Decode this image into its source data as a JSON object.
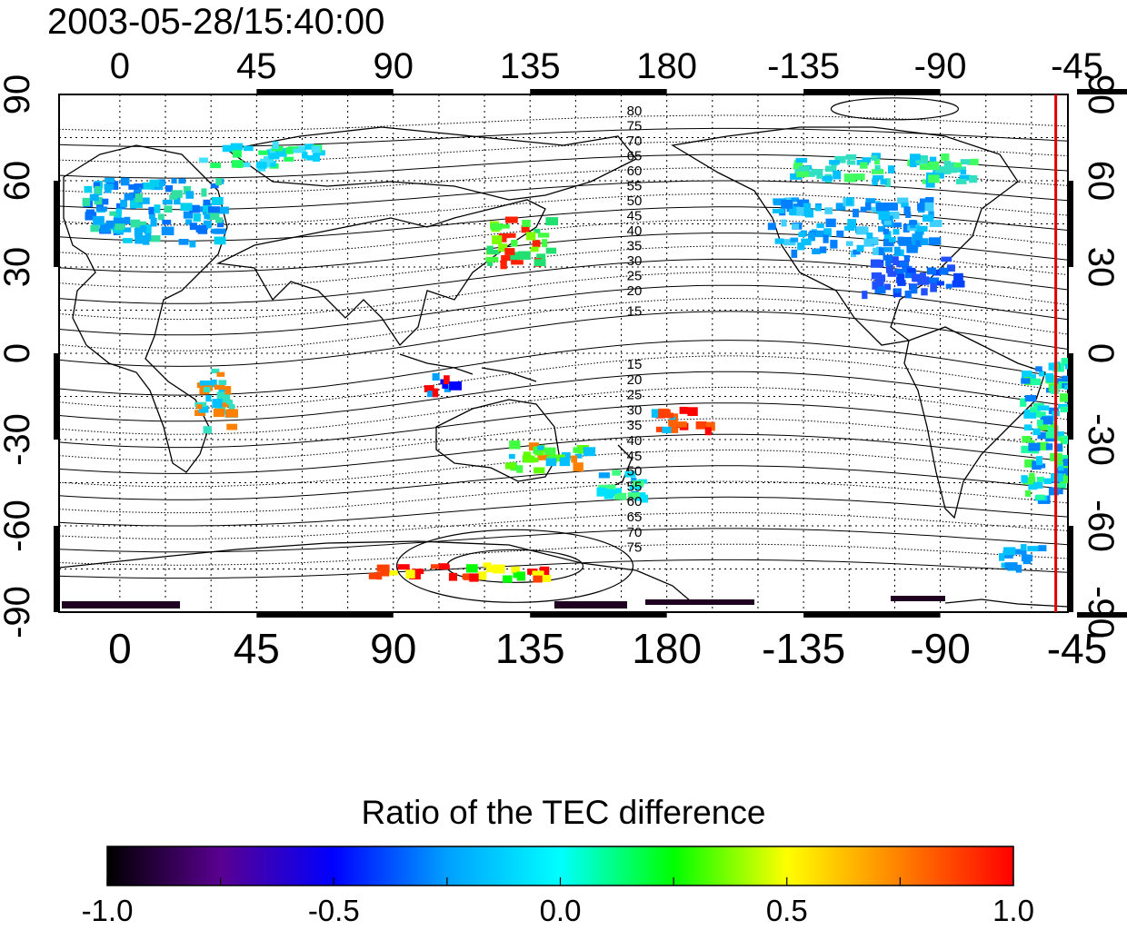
{
  "timestamp": "2003-05-28/15:40:00",
  "map": {
    "lon_ticks": [
      "0",
      "45",
      "90",
      "135",
      "180",
      "-135",
      "-90",
      "-45"
    ],
    "lat_ticks_left": [
      "90",
      "60",
      "30",
      "0",
      "-30",
      "-60",
      "-90"
    ],
    "lat_ticks_right": [
      "90",
      "60",
      "30",
      "0",
      "-30",
      "-60",
      "-90"
    ],
    "north_contour_labels": [
      "80",
      "75",
      "70",
      "65",
      "60",
      "55",
      "50",
      "45",
      "40",
      "35",
      "30",
      "25",
      "20",
      "15"
    ],
    "south_contour_labels": [
      "15",
      "20",
      "25",
      "30",
      "35",
      "40",
      "45",
      "50",
      "55",
      "60",
      "65",
      "70",
      "75"
    ],
    "marker_line": {
      "longitude": -52,
      "color": "#e00000"
    },
    "lon_range": [
      -20,
      312
    ],
    "lat_range": [
      -90,
      90
    ]
  },
  "colorbar": {
    "title": "Ratio of the TEC difference",
    "ticks": [
      "-1.0",
      "-0.5",
      "0.0",
      "0.5",
      "1.0"
    ],
    "range": [
      -1.0,
      1.0
    ],
    "gradient": [
      "#000000",
      "#5a0090",
      "#0000ff",
      "#00a0ff",
      "#00ffff",
      "#00ff00",
      "#ffff00",
      "#ff8000",
      "#ff0000"
    ]
  }
}
